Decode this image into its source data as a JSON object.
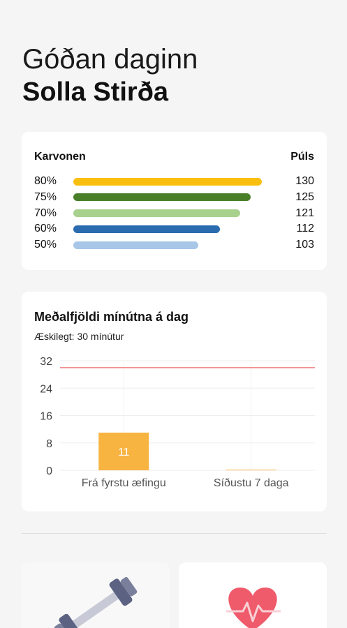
{
  "greeting": {
    "hello": "Góðan daginn",
    "name": "Solla Stirða"
  },
  "karvonen": {
    "title": "Karvonen",
    "pulse_label": "Púls",
    "rows": [
      {
        "pct": "80%",
        "bpm": "130",
        "fill": 0.98,
        "color": "#f9bf0f"
      },
      {
        "pct": "75%",
        "bpm": "125",
        "fill": 0.925,
        "color": "#4a7f2a"
      },
      {
        "pct": "70%",
        "bpm": "121",
        "fill": 0.87,
        "color": "#a9d18e"
      },
      {
        "pct": "60%",
        "bpm": "112",
        "fill": 0.765,
        "color": "#2b6cb0"
      },
      {
        "pct": "50%",
        "bpm": "103",
        "fill": 0.65,
        "color": "#a7c6e8"
      }
    ]
  },
  "minutes_card": {
    "title": "Meðalfjöldi mínútna á dag",
    "subtitle": "Æskilegt: 30 mínútur"
  },
  "chart_data": {
    "type": "bar",
    "title": "Meðalfjöldi mínútna á dag",
    "subtitle": "Æskilegt: 30 mínútur",
    "categories": [
      "Frá fyrstu æfingu",
      "Síðustu 7 daga"
    ],
    "values": [
      11,
      0
    ],
    "data_labels": [
      "11",
      ""
    ],
    "yticks": [
      "0",
      "8",
      "16",
      "24",
      "32"
    ],
    "ylim": [
      0,
      32
    ],
    "target": 30,
    "bar_color": "#f7b441",
    "target_color": "#f08080",
    "grid": true
  },
  "tiles": [
    {
      "icon": "dumbbell-icon"
    },
    {
      "icon": "heart-pulse-icon",
      "color": "#ef5b6b"
    }
  ]
}
